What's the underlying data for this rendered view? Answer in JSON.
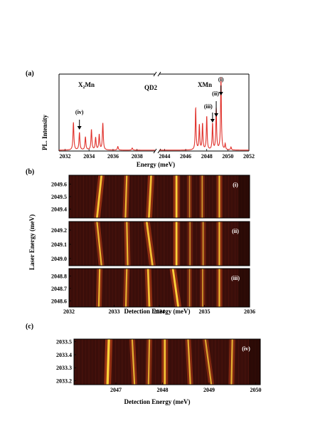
{
  "panel_labels": {
    "a": "(a)",
    "b": "(b)",
    "c": "(c)"
  },
  "chart_data": [
    {
      "type": "line",
      "panel": "(a)",
      "ylabel": "PL. Intensity",
      "xlabel": "Energy (meV)",
      "annotations": {
        "x2mn_main": "X",
        "x2mn_sub": "2",
        "x2mn_rest": "Mn",
        "qd": "QD2",
        "xmn": "XMn",
        "i": "(i)",
        "ii": "(ii)",
        "iii": "(iii)",
        "iv": "(iv)"
      },
      "series_color": "#e0302a",
      "left_axis": {
        "xlim": [
          2031.5,
          2039.5
        ],
        "ticks": [
          "2032",
          "2034",
          "2036",
          "2038"
        ],
        "tick_values": [
          2032,
          2034,
          2036,
          2038
        ]
      },
      "right_axis": {
        "xlim": [
          2043.5,
          2052
        ],
        "ticks": [
          "2044",
          "2046",
          "2048",
          "2050",
          "2052"
        ],
        "tick_values": [
          2044,
          2046,
          2048,
          2050,
          2052
        ]
      },
      "peaks_left": [
        {
          "x": 2032.7,
          "h": 0.38
        },
        {
          "x": 2033.2,
          "h": 0.24
        },
        {
          "x": 2033.7,
          "h": 0.18
        },
        {
          "x": 2034.2,
          "h": 0.28
        },
        {
          "x": 2034.55,
          "h": 0.17
        },
        {
          "x": 2034.85,
          "h": 0.21
        },
        {
          "x": 2035.15,
          "h": 0.37
        },
        {
          "x": 2036.4,
          "h": 0.05
        },
        {
          "x": 2037.6,
          "h": 0.03
        }
      ],
      "peaks_right": [
        {
          "x": 2046.95,
          "h": 0.58
        },
        {
          "x": 2047.3,
          "h": 0.34
        },
        {
          "x": 2047.6,
          "h": 0.36
        },
        {
          "x": 2048.0,
          "h": 0.46
        },
        {
          "x": 2048.55,
          "h": 0.36
        },
        {
          "x": 2048.9,
          "h": 0.57
        },
        {
          "x": 2049.35,
          "h": 1.0
        },
        {
          "x": 2049.75,
          "h": 0.08
        },
        {
          "x": 2050.3,
          "h": 0.04
        }
      ],
      "arrows": [
        {
          "label": "(iv)",
          "x": 2033.2
        },
        {
          "label": "(iii)",
          "x": 2048.55
        },
        {
          "label": "(ii)",
          "x": 2048.9
        },
        {
          "label": "(i)",
          "x": 2049.35
        }
      ]
    },
    {
      "type": "heatmap",
      "panel": "(b)",
      "ylabel": "Laser Energy (meV)",
      "xlabel": "Detection Energy (meV)",
      "xlim": [
        2032,
        2036
      ],
      "xticks": [
        "2032",
        "2033",
        "2034",
        "2035",
        "2036"
      ],
      "xtick_values": [
        2032,
        2033,
        2034,
        2035,
        2036
      ],
      "subpanels": [
        {
          "tag": "(i)",
          "ylim": [
            2049.33,
            2049.67
          ],
          "yticks": [
            "2049.6",
            "2049.5",
            "2049.4"
          ],
          "ytick_values": [
            2049.6,
            2049.5,
            2049.4
          ],
          "lines": [
            {
              "x0": 2032.72,
              "x1": 2032.62,
              "w": 5,
              "a": 0.95
            },
            {
              "x0": 2033.28,
              "x1": 2033.25,
              "w": 4,
              "a": 0.85
            },
            {
              "x0": 2033.82,
              "x1": 2033.77,
              "w": 5,
              "a": 0.9
            },
            {
              "x0": 2034.38,
              "x1": 2034.38,
              "w": 5,
              "a": 1.0
            },
            {
              "x0": 2034.67,
              "x1": 2034.67,
              "w": 3,
              "a": 0.6
            },
            {
              "x0": 2034.95,
              "x1": 2034.95,
              "w": 3,
              "a": 0.7
            },
            {
              "x0": 2035.33,
              "x1": 2035.33,
              "w": 4,
              "a": 0.85
            }
          ]
        },
        {
          "tag": "(ii)",
          "ylim": [
            2048.95,
            2049.26
          ],
          "yticks": [
            "2049.2",
            "2049.1",
            "2049.0"
          ],
          "ytick_values": [
            2049.2,
            2049.1,
            2049.0
          ],
          "lines": [
            {
              "x0": 2032.62,
              "x1": 2032.72,
              "w": 4,
              "a": 0.85
            },
            {
              "x0": 2033.28,
              "x1": 2033.3,
              "w": 4,
              "a": 0.85
            },
            {
              "x0": 2033.72,
              "x1": 2033.85,
              "w": 5,
              "a": 0.9
            },
            {
              "x0": 2034.38,
              "x1": 2034.38,
              "w": 5,
              "a": 1.0
            },
            {
              "x0": 2034.68,
              "x1": 2034.68,
              "w": 3,
              "a": 0.6
            },
            {
              "x0": 2034.97,
              "x1": 2034.97,
              "w": 3,
              "a": 0.7
            },
            {
              "x0": 2035.33,
              "x1": 2035.33,
              "w": 4,
              "a": 0.85
            }
          ]
        },
        {
          "tag": "(iii)",
          "ylim": [
            2048.55,
            2048.86
          ],
          "yticks": [
            "2048.8",
            "2048.7",
            "2048.6"
          ],
          "ytick_values": [
            2048.8,
            2048.7,
            2048.6
          ],
          "lines": [
            {
              "x0": 2032.68,
              "x1": 2032.66,
              "w": 4,
              "a": 0.85
            },
            {
              "x0": 2033.28,
              "x1": 2033.26,
              "w": 4,
              "a": 0.8
            },
            {
              "x0": 2033.75,
              "x1": 2033.78,
              "w": 5,
              "a": 0.9
            },
            {
              "x0": 2034.3,
              "x1": 2034.42,
              "w": 5,
              "a": 1.0
            },
            {
              "x0": 2034.67,
              "x1": 2034.67,
              "w": 3,
              "a": 0.6
            },
            {
              "x0": 2034.96,
              "x1": 2034.96,
              "w": 3,
              "a": 0.7
            },
            {
              "x0": 2035.33,
              "x1": 2035.33,
              "w": 4,
              "a": 0.85
            }
          ]
        }
      ]
    },
    {
      "type": "heatmap",
      "panel": "(c)",
      "tag": "(iv)",
      "xlabel": "Detection Energy (meV)",
      "xlim": [
        2046.1,
        2050.1
      ],
      "xticks": [
        "2047",
        "2048",
        "2049",
        "2050"
      ],
      "xtick_values": [
        2047,
        2048,
        2049,
        2050
      ],
      "ylim": [
        2033.17,
        2033.52
      ],
      "yticks": [
        "2033.5",
        "2033.4",
        "2033.3",
        "2033.2"
      ],
      "ytick_values": [
        2033.5,
        2033.4,
        2033.3,
        2033.2
      ],
      "lines": [
        {
          "x0": 2046.85,
          "x1": 2046.82,
          "w": 6,
          "a": 1.0
        },
        {
          "x0": 2047.35,
          "x1": 2047.4,
          "w": 4,
          "a": 0.8
        },
        {
          "x0": 2047.72,
          "x1": 2047.7,
          "w": 4,
          "a": 0.75
        },
        {
          "x0": 2048.05,
          "x1": 2048.05,
          "w": 5,
          "a": 0.9
        },
        {
          "x0": 2048.55,
          "x1": 2048.6,
          "w": 4,
          "a": 0.8
        },
        {
          "x0": 2048.92,
          "x1": 2049.05,
          "w": 4,
          "a": 0.75
        },
        {
          "x0": 2049.5,
          "x1": 2049.48,
          "w": 4,
          "a": 0.8
        }
      ]
    }
  ]
}
